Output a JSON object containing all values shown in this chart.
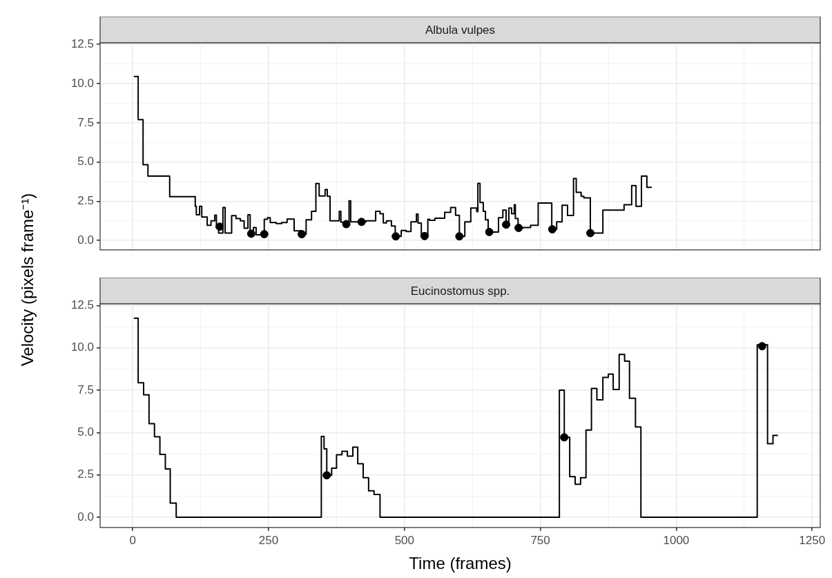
{
  "chart_data": [
    {
      "type": "step",
      "title": "Albula vulpes",
      "ylabel": "Velocity (pixels frame⁻¹)",
      "xlim": [
        -60,
        1265
      ],
      "ylim": [
        -0.6,
        12.6
      ],
      "grid": true,
      "legend": false,
      "tick_labels": "y",
      "xticks": [
        0,
        {
          "value": 125,
          "label": null
        },
        250,
        {
          "value": 375,
          "label": null
        },
        500,
        {
          "value": 625,
          "label": null
        },
        750,
        {
          "value": 875,
          "label": null
        },
        1000,
        {
          "value": 1125,
          "label": null
        },
        1250
      ],
      "yticks": [
        {
          "value": 0,
          "label": "0.0"
        },
        {
          "value": 1.25,
          "label": null
        },
        2.5,
        {
          "value": 3.75,
          "label": null
        },
        {
          "value": 5,
          "label": "5.0"
        },
        {
          "value": 6.25,
          "label": null
        },
        7.5,
        {
          "value": 8.75,
          "label": null
        },
        {
          "value": 10,
          "label": "10.0"
        },
        {
          "value": 11.25,
          "label": null
        },
        12.5
      ],
      "series": [
        {
          "type": "step",
          "color": "#000000",
          "x": [
            2,
            10,
            19,
            28,
            68,
            115,
            117,
            123,
            127,
            137,
            144,
            151,
            154,
            158,
            166,
            170,
            182,
            190,
            198,
            205,
            212,
            216,
            222,
            227,
            242,
            248,
            253,
            264,
            274,
            284,
            297,
            311,
            319,
            329,
            337,
            343,
            354,
            358,
            363,
            380,
            383,
            398,
            401,
            429,
            447,
            455,
            461,
            467,
            476,
            483,
            494,
            503,
            512,
            522,
            525,
            531,
            543,
            546,
            556,
            574,
            585,
            594,
            601,
            611,
            622,
            633,
            635,
            639,
            645,
            649,
            654,
            673,
            681,
            687,
            692,
            697,
            702,
            704,
            709,
            719,
            732,
            746,
            771,
            780,
            790,
            800,
            811,
            816,
            825,
            830,
            842,
            865,
            904,
            918,
            926,
            936,
            946,
            955
          ],
          "values": [
            10.45,
            7.7,
            4.83,
            4.1,
            2.79,
            2.18,
            1.64,
            2.18,
            1.49,
            0.97,
            1.25,
            1.61,
            0.82,
            0.47,
            2.1,
            0.47,
            1.58,
            1.39,
            1.25,
            0.78,
            1.64,
            0.43,
            0.82,
            0.36,
            1.35,
            1.45,
            1.14,
            1.07,
            1.14,
            1.36,
            0.61,
            0.4,
            1.32,
            1.86,
            3.63,
            2.84,
            3.24,
            2.81,
            1.25,
            1.86,
            1.16,
            2.53,
            1.18,
            1.25,
            1.86,
            1.7,
            1.12,
            1.25,
            0.92,
            0.26,
            0.64,
            0.57,
            1.18,
            1.68,
            1.11,
            0.28,
            1.35,
            1.28,
            1.42,
            1.79,
            2.1,
            1.6,
            0.26,
            1.18,
            2.07,
            1.84,
            3.64,
            2.42,
            1.86,
            1.32,
            0.54,
            1.45,
            1.93,
            1.01,
            2.07,
            1.7,
            2.27,
            1.39,
            0.8,
            0.82,
            0.97,
            2.39,
            0.71,
            1.18,
            2.24,
            1.59,
            3.95,
            3.07,
            2.81,
            2.71,
            0.47,
            1.93,
            2.28,
            3.5,
            2.18,
            4.1,
            3.39,
            3.39
          ]
        },
        {
          "type": "scatter",
          "color": "#000000",
          "marker": "circle",
          "x": [
            160,
            218,
            242,
            311,
            393,
            421,
            484,
            537,
            601,
            656,
            687,
            710,
            772,
            842
          ],
          "values": [
            0.88,
            0.43,
            0.4,
            0.4,
            1.04,
            1.18,
            0.26,
            0.28,
            0.26,
            0.54,
            1.01,
            0.8,
            0.71,
            0.47
          ]
        }
      ]
    },
    {
      "type": "step",
      "title": "Eucinostomus spp.",
      "xlabel": "Time (frames)",
      "xlim": [
        -60,
        1265
      ],
      "ylim": [
        -0.6,
        12.6
      ],
      "grid": true,
      "legend": false,
      "xticks": [
        0,
        {
          "value": 125,
          "label": null
        },
        250,
        {
          "value": 375,
          "label": null
        },
        500,
        {
          "value": 625,
          "label": null
        },
        750,
        {
          "value": 875,
          "label": null
        },
        1000,
        {
          "value": 1125,
          "label": null
        },
        1250
      ],
      "yticks": [
        {
          "value": 0,
          "label": "0.0"
        },
        {
          "value": 1.25,
          "label": null
        },
        2.5,
        {
          "value": 3.75,
          "label": null
        },
        {
          "value": 5,
          "label": "5.0"
        },
        {
          "value": 6.25,
          "label": null
        },
        7.5,
        {
          "value": 8.75,
          "label": null
        },
        {
          "value": 10,
          "label": "10.0"
        },
        {
          "value": 11.25,
          "label": null
        },
        12.5
      ],
      "series": [
        {
          "type": "step",
          "color": "#000000",
          "x": [
            2,
            10,
            20,
            30,
            40,
            50,
            60,
            69,
            80,
            347,
            352,
            357,
            366,
            375,
            385,
            395,
            405,
            414,
            424,
            434,
            444,
            455,
            785,
            794,
            804,
            814,
            824,
            834,
            844,
            854,
            865,
            875,
            884,
            895,
            905,
            914,
            925,
            935,
            1149,
            1168,
            1178,
            1187
          ],
          "values": [
            11.75,
            7.94,
            7.23,
            5.53,
            4.75,
            3.71,
            2.86,
            0.84,
            0,
            4.77,
            4.04,
            2.48,
            2.9,
            3.69,
            3.9,
            3.61,
            4.14,
            3.16,
            2.34,
            1.56,
            1.35,
            0,
            7.5,
            4.72,
            2.4,
            1.95,
            2.34,
            5.15,
            7.61,
            6.93,
            8.26,
            8.45,
            7.54,
            9.61,
            9.22,
            7.03,
            5.33,
            0,
            10.18,
            4.35,
            4.83,
            4.83
          ]
        },
        {
          "type": "scatter",
          "color": "#000000",
          "marker": "circle",
          "x": [
            357,
            794,
            1158
          ],
          "values": [
            2.48,
            4.72,
            10.1
          ]
        }
      ]
    }
  ]
}
